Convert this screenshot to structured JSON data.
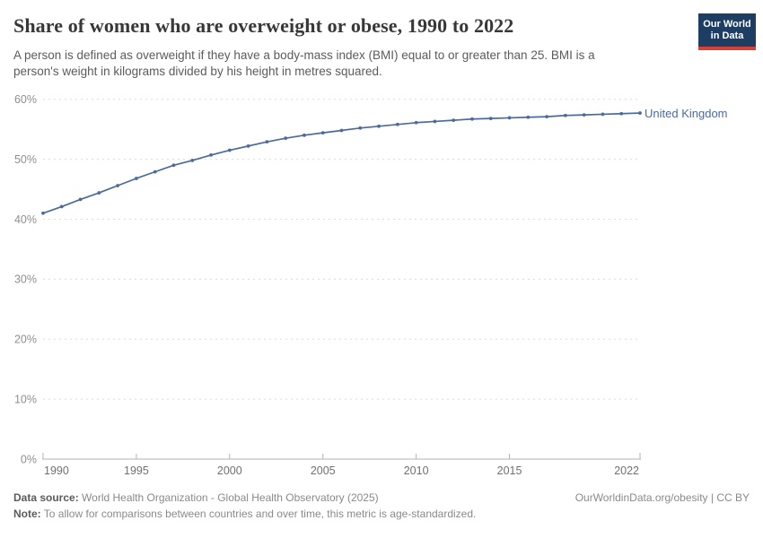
{
  "header": {
    "logo": {
      "line1": "Our World",
      "line2": "in Data",
      "bg_color": "#1d3d63",
      "stripe_color": "#d8413b"
    }
  },
  "chart_data": {
    "type": "line",
    "title": "Share of women who are overweight or obese, 1990 to 2022",
    "subtitle": "A person is defined as overweight if they have a body-mass index (BMI) equal to or greater than 25. BMI is a person's weight in kilograms divided by his height in metres squared.",
    "series": [
      {
        "name": "United Kingdom",
        "color": "#4C6A9C",
        "x": [
          1990,
          1991,
          1992,
          1993,
          1994,
          1995,
          1996,
          1997,
          1998,
          1999,
          2000,
          2001,
          2002,
          2003,
          2004,
          2005,
          2006,
          2007,
          2008,
          2009,
          2010,
          2011,
          2012,
          2013,
          2014,
          2015,
          2016,
          2017,
          2018,
          2019,
          2020,
          2021,
          2022
        ],
        "values": [
          41.0,
          42.1,
          43.3,
          44.4,
          45.6,
          46.8,
          47.9,
          49.0,
          49.8,
          50.7,
          51.5,
          52.2,
          52.9,
          53.5,
          54.0,
          54.4,
          54.8,
          55.2,
          55.5,
          55.8,
          56.1,
          56.3,
          56.5,
          56.7,
          56.8,
          56.9,
          57.0,
          57.1,
          57.3,
          57.4,
          57.5,
          57.6,
          57.7
        ]
      }
    ],
    "xlabel": "",
    "ylabel": "",
    "xlim": [
      1990,
      2022
    ],
    "ylim": [
      0,
      60
    ],
    "x_ticks": [
      1990,
      1995,
      2000,
      2005,
      2010,
      2015,
      2022
    ],
    "y_ticks": [
      0,
      10,
      20,
      30,
      40,
      50,
      60
    ],
    "y_tick_suffix": "%",
    "grid": "horizontal-dashed",
    "legend_position": "label-right-of-line-end",
    "markers": "point-per-year"
  },
  "footer": {
    "datasource_label": "Data source:",
    "datasource_text": "World Health Organization - Global Health Observatory (2025)",
    "note_label": "Note:",
    "note_text": "To allow for comparisons between countries and over time, this metric is age-standardized.",
    "credit": "OurWorldinData.org/obesity | CC BY"
  },
  "colors": {
    "line": "#4C6A9C",
    "grid": "#dcdcdc",
    "axis": "#b3b3b3",
    "y_tick_label": "#8f8f8f",
    "x_tick_label": "#707070",
    "title": "#383838",
    "subtitle": "#5b5b5b"
  }
}
